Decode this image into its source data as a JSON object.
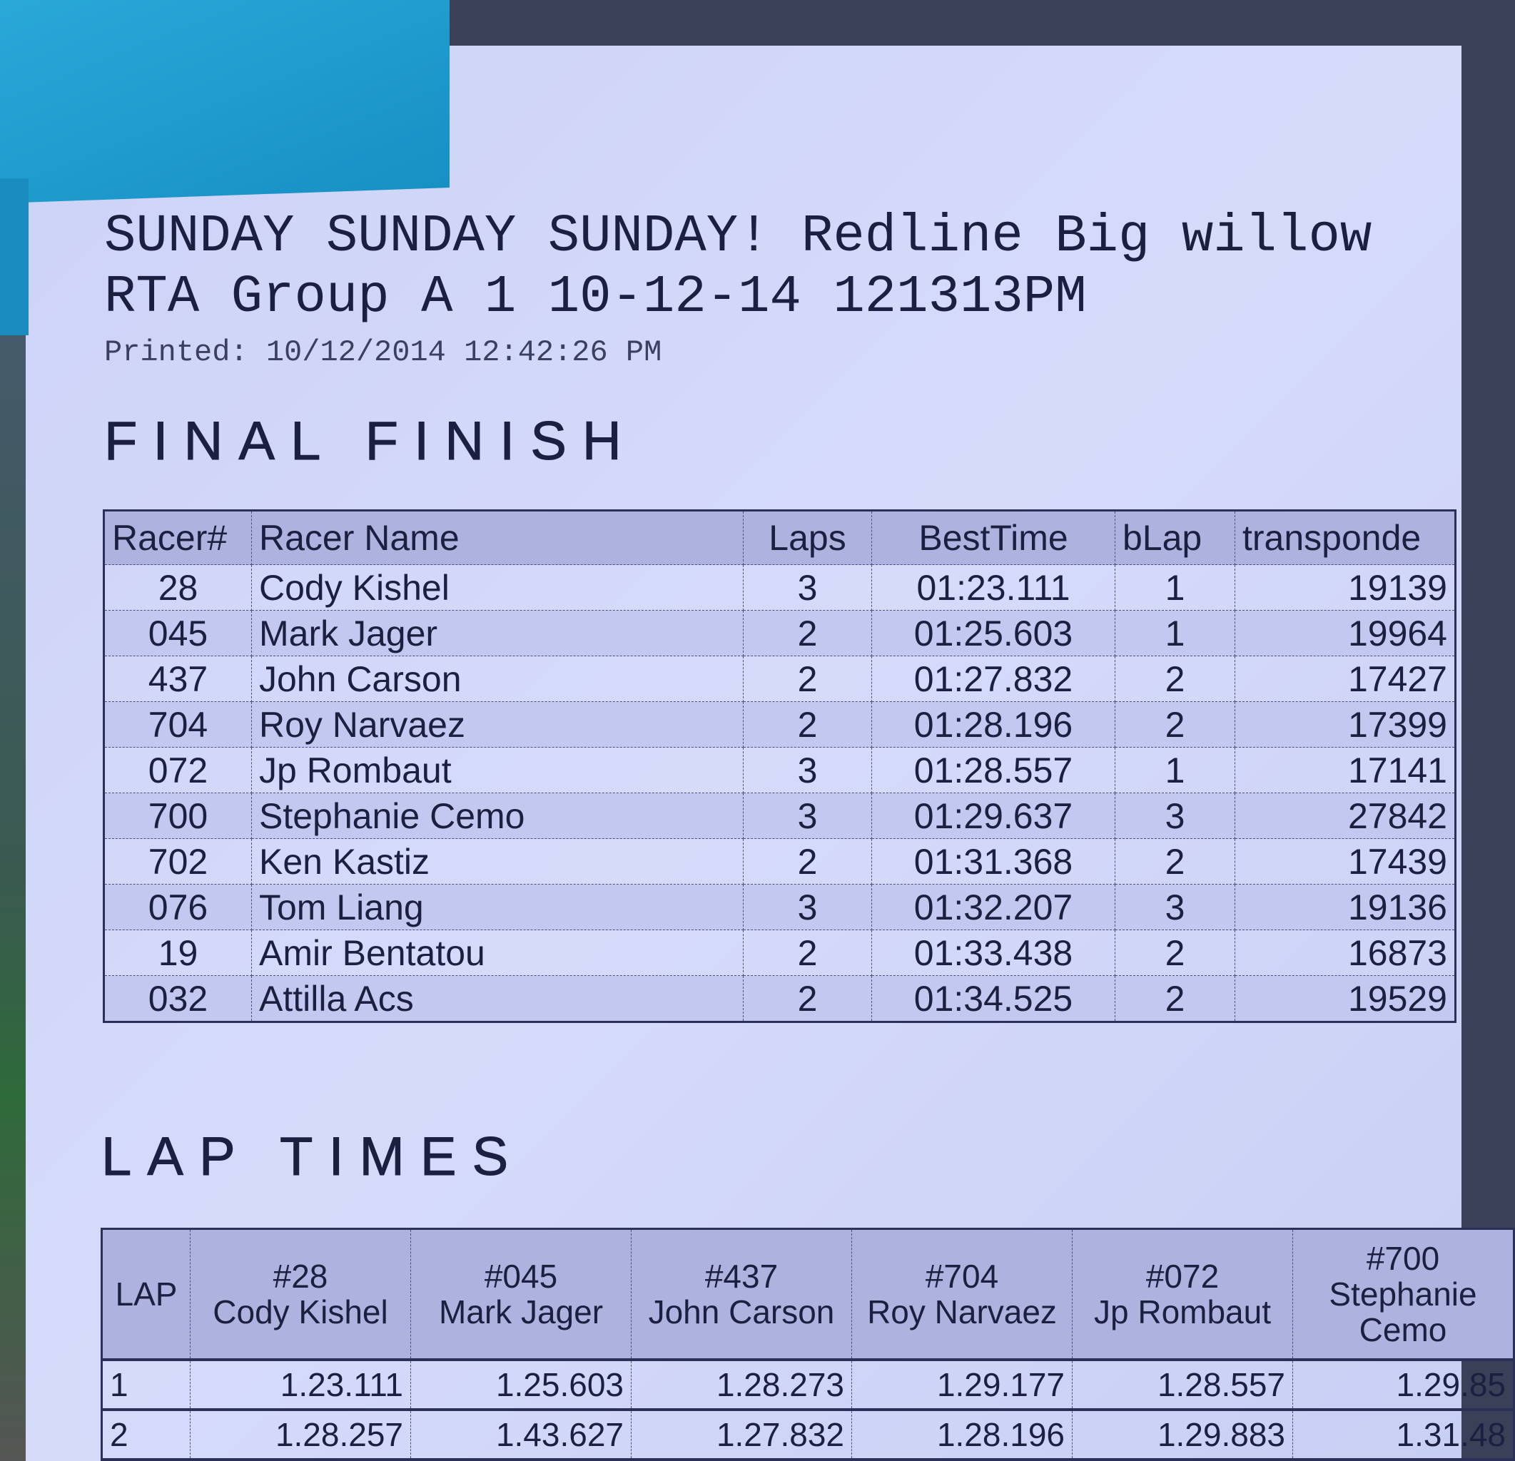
{
  "header": {
    "title_line1": "SUNDAY SUNDAY SUNDAY! Redline Big willow",
    "title_line2": "RTA Group A 1  10-12-14 121313PM",
    "printed": "Printed: 10/12/2014 12:42:26 PM"
  },
  "final_finish": {
    "title": "FINAL FINISH",
    "columns": [
      "Racer#",
      "Racer Name",
      "Laps",
      "BestTime",
      "bLap",
      "transponde"
    ],
    "rows": [
      [
        "28",
        "Cody Kishel",
        "3",
        "01:23.111",
        "1",
        "19139"
      ],
      [
        "045",
        "Mark Jager",
        "2",
        "01:25.603",
        "1",
        "19964"
      ],
      [
        "437",
        "John Carson",
        "2",
        "01:27.832",
        "2",
        "17427"
      ],
      [
        "704",
        "Roy Narvaez",
        "2",
        "01:28.196",
        "2",
        "17399"
      ],
      [
        "072",
        "Jp Rombaut",
        "3",
        "01:28.557",
        "1",
        "17141"
      ],
      [
        "700",
        "Stephanie Cemo",
        "3",
        "01:29.637",
        "3",
        "27842"
      ],
      [
        "702",
        "Ken Kastiz",
        "2",
        "01:31.368",
        "2",
        "17439"
      ],
      [
        "076",
        "Tom Liang",
        "3",
        "01:32.207",
        "3",
        "19136"
      ],
      [
        "19",
        "Amir Bentatou",
        "2",
        "01:33.438",
        "2",
        "16873"
      ],
      [
        "032",
        "Attilla Acs",
        "2",
        "01:34.525",
        "2",
        "19529"
      ]
    ]
  },
  "lap_times": {
    "title": "LAP TIMES",
    "lap_label": "LAP",
    "racers": [
      {
        "num": "#28",
        "name": "Cody Kishel"
      },
      {
        "num": "#045",
        "name": "Mark Jager"
      },
      {
        "num": "#437",
        "name": "John Carson"
      },
      {
        "num": "#704",
        "name": "Roy Narvaez"
      },
      {
        "num": "#072",
        "name": "Jp Rombaut"
      },
      {
        "num": "#700",
        "name": "Stephanie Cemo"
      }
    ],
    "rows": [
      [
        "1",
        "1.23.111",
        "1.25.603",
        "1.28.273",
        "1.29.177",
        "1.28.557",
        "1.29.85"
      ],
      [
        "2",
        "1.28.257",
        "1.43.627",
        "1.27.832",
        "1.28.196",
        "1.29.883",
        "1.31.48"
      ]
    ]
  }
}
